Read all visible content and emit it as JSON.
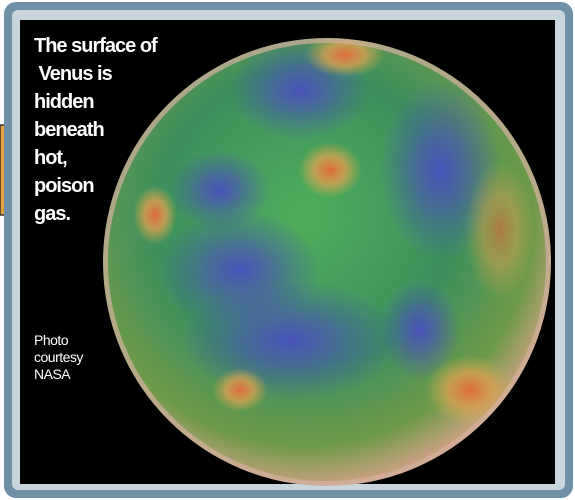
{
  "caption": {
    "lines": [
      "The surface of",
      " Venus is",
      "hidden",
      "beneath",
      "hot,",
      "poison",
      "gas."
    ]
  },
  "credit": {
    "lines": [
      "Photo",
      "courtesy",
      "NASA"
    ]
  }
}
